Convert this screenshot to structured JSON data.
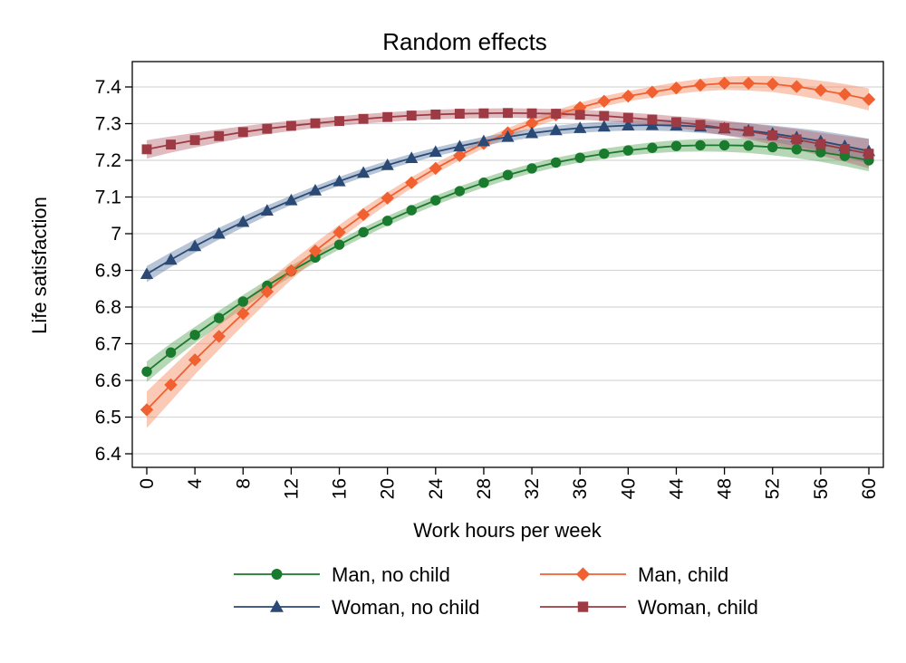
{
  "chart_data": {
    "type": "line",
    "title": "Random effects",
    "xlabel": "Work hours per week",
    "ylabel": "Life satisfaction",
    "xlim": [
      0,
      60
    ],
    "ylim": [
      6.4,
      7.45
    ],
    "x_ticks": [
      "0",
      "4",
      "8",
      "12",
      "16",
      "20",
      "24",
      "28",
      "32",
      "36",
      "40",
      "44",
      "48",
      "52",
      "56",
      "60"
    ],
    "y_ticks": [
      "6.4",
      "6.5",
      "6.6",
      "6.7",
      "6.8",
      "6.9",
      "7",
      "7.1",
      "7.2",
      "7.3",
      "7.4"
    ],
    "grid": "horizontal",
    "legend_position": "bottom",
    "x": [
      0,
      2,
      4,
      6,
      8,
      10,
      12,
      14,
      16,
      18,
      20,
      22,
      24,
      26,
      28,
      30,
      32,
      34,
      36,
      38,
      40,
      42,
      44,
      46,
      48,
      50,
      52,
      54,
      56,
      58,
      60
    ],
    "series": [
      {
        "name": "Man, no child",
        "color": "#1a7a2e",
        "band_color": "#5aa65a",
        "marker": "circle",
        "values": [
          6.624,
          6.676,
          6.724,
          6.77,
          6.815,
          6.858,
          6.898,
          6.935,
          6.97,
          7.004,
          7.035,
          7.064,
          7.091,
          7.116,
          7.139,
          7.16,
          7.178,
          7.194,
          7.207,
          7.218,
          7.227,
          7.234,
          7.239,
          7.241,
          7.241,
          7.24,
          7.236,
          7.23,
          7.222,
          7.212,
          7.2
        ],
        "band_width": [
          0.028,
          0.025,
          0.022,
          0.02,
          0.018,
          0.016,
          0.015,
          0.014,
          0.013,
          0.013,
          0.013,
          0.013,
          0.013,
          0.013,
          0.013,
          0.013,
          0.013,
          0.013,
          0.013,
          0.014,
          0.014,
          0.015,
          0.016,
          0.017,
          0.018,
          0.02,
          0.022,
          0.024,
          0.026,
          0.028,
          0.03
        ]
      },
      {
        "name": "Man, child",
        "color": "#f06030",
        "band_color": "#f58a60",
        "marker": "diamond",
        "values": [
          6.52,
          6.588,
          6.656,
          6.72,
          6.782,
          6.842,
          6.899,
          6.953,
          7.004,
          7.052,
          7.097,
          7.139,
          7.178,
          7.213,
          7.246,
          7.275,
          7.301,
          7.324,
          7.344,
          7.361,
          7.375,
          7.386,
          7.397,
          7.405,
          7.41,
          7.41,
          7.408,
          7.401,
          7.391,
          7.38,
          7.366
        ],
        "band_width": [
          0.05,
          0.045,
          0.04,
          0.036,
          0.032,
          0.028,
          0.025,
          0.022,
          0.02,
          0.018,
          0.016,
          0.015,
          0.014,
          0.013,
          0.013,
          0.013,
          0.013,
          0.013,
          0.013,
          0.014,
          0.014,
          0.015,
          0.016,
          0.017,
          0.018,
          0.02,
          0.022,
          0.024,
          0.026,
          0.028,
          0.03
        ]
      },
      {
        "name": "Woman, no child",
        "color": "#2a4a75",
        "band_color": "#5f7fa6",
        "marker": "triangle",
        "values": [
          6.89,
          6.929,
          6.966,
          7.0,
          7.032,
          7.063,
          7.091,
          7.118,
          7.143,
          7.166,
          7.187,
          7.206,
          7.223,
          7.238,
          7.252,
          7.264,
          7.274,
          7.282,
          7.288,
          7.292,
          7.295,
          7.296,
          7.295,
          7.292,
          7.287,
          7.281,
          7.273,
          7.263,
          7.252,
          7.239,
          7.225
        ],
        "band_width": [
          0.022,
          0.02,
          0.018,
          0.016,
          0.015,
          0.014,
          0.013,
          0.012,
          0.012,
          0.012,
          0.012,
          0.012,
          0.012,
          0.012,
          0.012,
          0.012,
          0.012,
          0.012,
          0.013,
          0.013,
          0.014,
          0.015,
          0.016,
          0.017,
          0.018,
          0.02,
          0.022,
          0.025,
          0.028,
          0.031,
          0.034
        ]
      },
      {
        "name": "Woman, child",
        "color": "#9e3a44",
        "band_color": "#b76870",
        "marker": "square",
        "values": [
          7.23,
          7.243,
          7.255,
          7.266,
          7.277,
          7.286,
          7.294,
          7.301,
          7.307,
          7.313,
          7.318,
          7.322,
          7.325,
          7.327,
          7.328,
          7.329,
          7.328,
          7.327,
          7.324,
          7.321,
          7.316,
          7.311,
          7.304,
          7.297,
          7.288,
          7.279,
          7.268,
          7.257,
          7.244,
          7.231,
          7.218
        ],
        "band_width": [
          0.025,
          0.022,
          0.02,
          0.018,
          0.016,
          0.015,
          0.014,
          0.013,
          0.013,
          0.013,
          0.013,
          0.013,
          0.013,
          0.013,
          0.013,
          0.013,
          0.013,
          0.013,
          0.013,
          0.014,
          0.014,
          0.015,
          0.016,
          0.018,
          0.02,
          0.022,
          0.025,
          0.028,
          0.031,
          0.035,
          0.04
        ]
      }
    ]
  }
}
